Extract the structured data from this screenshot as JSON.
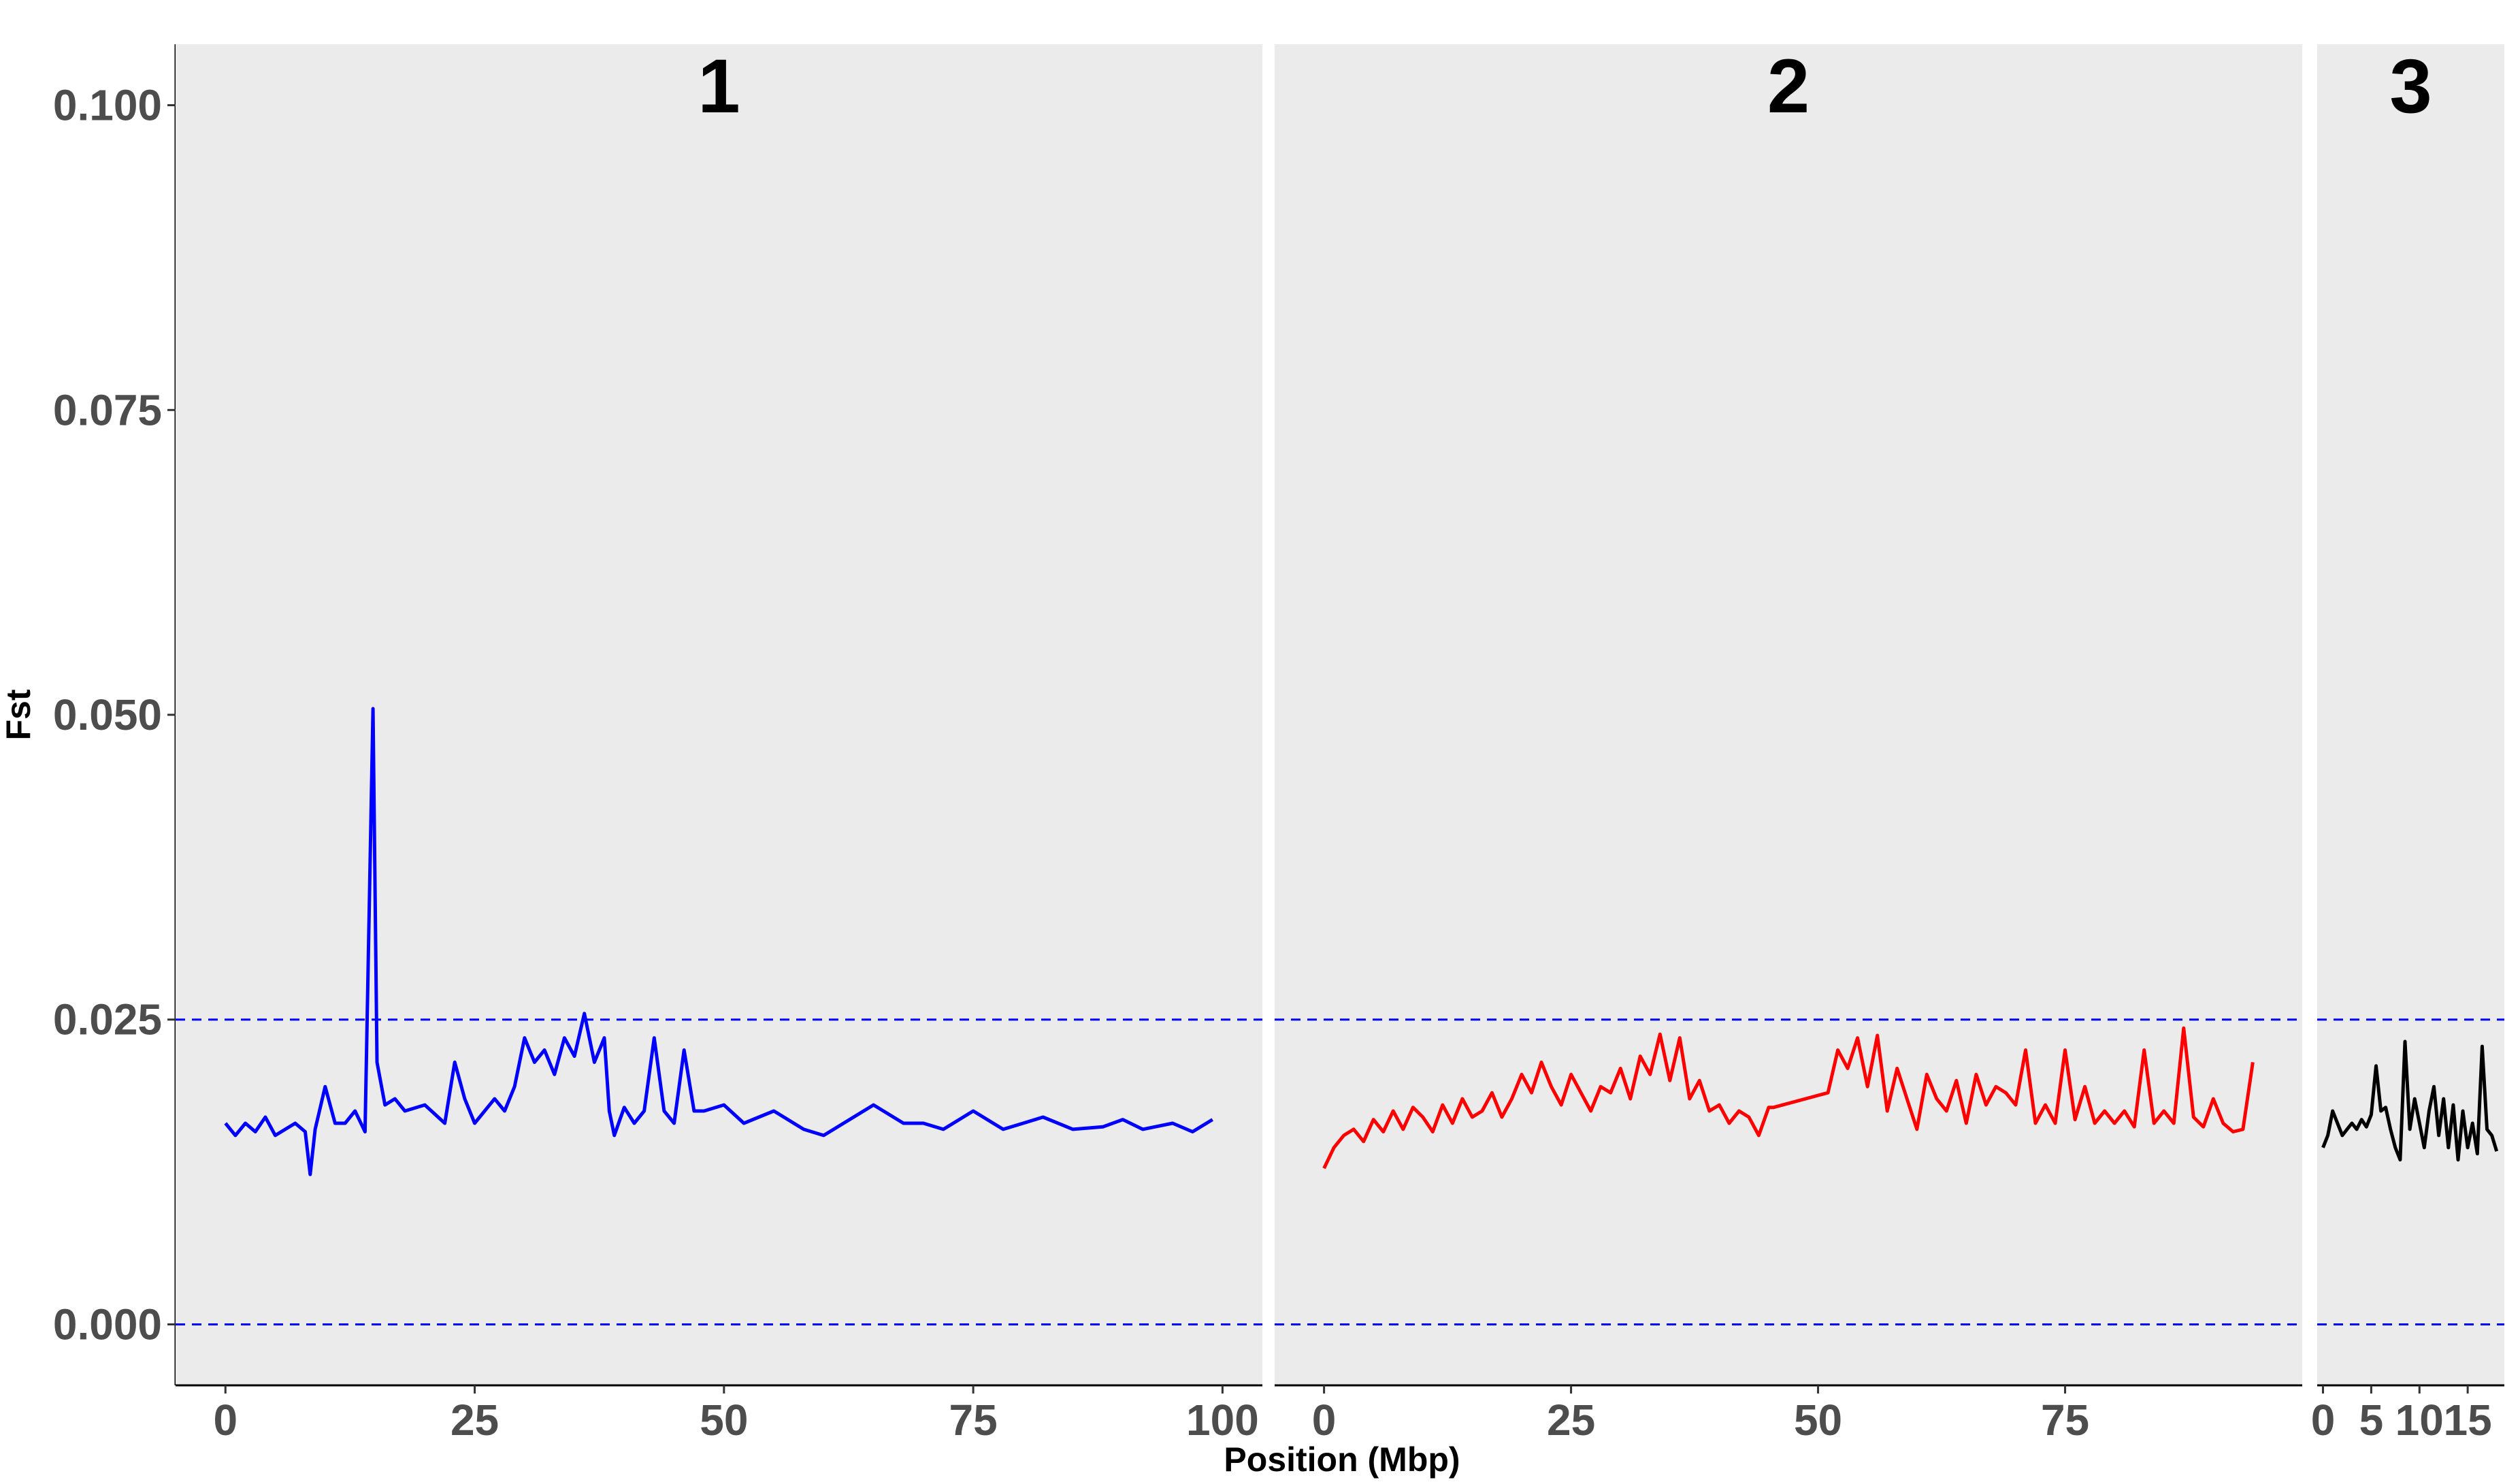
{
  "chart_data": {
    "type": "line",
    "xlabel": "Position (Mbp)",
    "ylabel": "Fst",
    "ylim": [
      -0.005,
      0.105
    ],
    "yticks": [
      0.0,
      0.025,
      0.05,
      0.075,
      0.1
    ],
    "ytick_labels": [
      "0.000",
      "0.025",
      "0.050",
      "0.075",
      "0.100"
    ],
    "reference_lines": [
      {
        "y": 0.025,
        "style": "dashed",
        "color": "#0000ff"
      },
      {
        "y": 0.0,
        "style": "dashed",
        "color": "#0000ff"
      }
    ],
    "panel_background": "#ebebeb",
    "grid": false,
    "facets": [
      {
        "label": "1",
        "color": "#0000ff",
        "xlim": [
          -5,
          104
        ],
        "xticks": [
          0,
          25,
          50,
          75,
          100
        ],
        "xtick_labels": [
          "0",
          "25",
          "50",
          "75",
          "100"
        ],
        "x": [
          0,
          1,
          2,
          3,
          4,
          5,
          6,
          7,
          8,
          8.5,
          9,
          10,
          11,
          12,
          13,
          14,
          14.8,
          15.2,
          16,
          17,
          18,
          20,
          22,
          23,
          24,
          25,
          27,
          28,
          29,
          30,
          31,
          32,
          33,
          34,
          35,
          36,
          37,
          38,
          38.5,
          39,
          40,
          41,
          42,
          43,
          44,
          45,
          46,
          47,
          48,
          50,
          52,
          55,
          58,
          60,
          62,
          65,
          68,
          70,
          72,
          75,
          78,
          80,
          82,
          85,
          88,
          90,
          92,
          95,
          97,
          99
        ],
        "y": [
          0.0165,
          0.0155,
          0.0165,
          0.0158,
          0.017,
          0.0155,
          0.016,
          0.0165,
          0.0158,
          0.0123,
          0.016,
          0.0195,
          0.0165,
          0.0165,
          0.0175,
          0.0158,
          0.0505,
          0.0215,
          0.018,
          0.0185,
          0.0175,
          0.018,
          0.0165,
          0.0215,
          0.0185,
          0.0165,
          0.0185,
          0.0175,
          0.0195,
          0.0235,
          0.0215,
          0.0225,
          0.0205,
          0.0235,
          0.022,
          0.0255,
          0.0215,
          0.0235,
          0.0175,
          0.0155,
          0.0178,
          0.0165,
          0.0175,
          0.0235,
          0.0175,
          0.0165,
          0.0225,
          0.0175,
          0.0175,
          0.018,
          0.0165,
          0.0175,
          0.016,
          0.0155,
          0.0165,
          0.018,
          0.0165,
          0.0165,
          0.016,
          0.0175,
          0.016,
          0.0165,
          0.017,
          0.016,
          0.0162,
          0.0168,
          0.016,
          0.0165,
          0.0158,
          0.0168
        ]
      },
      {
        "label": "2",
        "color": "#ff0000",
        "xlim": [
          -5,
          99
        ],
        "xticks": [
          0,
          25,
          50,
          75
        ],
        "xtick_labels": [
          "0",
          "25",
          "50",
          "75"
        ],
        "x": [
          0,
          1,
          2,
          3,
          4,
          5,
          6,
          7,
          8,
          9,
          10,
          11,
          12,
          13,
          14,
          15,
          16,
          17,
          18,
          19,
          20,
          21,
          22,
          23,
          24,
          25,
          26,
          27,
          28,
          29,
          30,
          31,
          32,
          33,
          34,
          35,
          36,
          37,
          38,
          39,
          40,
          41,
          42,
          43,
          44,
          45,
          45.5,
          51,
          52,
          53,
          54,
          55,
          56,
          57,
          58,
          59,
          60,
          61,
          62,
          63,
          64,
          65,
          66,
          67,
          68,
          69,
          70,
          71,
          72,
          73,
          74,
          75,
          76,
          77,
          78,
          79,
          80,
          81,
          82,
          83,
          84,
          85,
          86,
          87,
          88,
          89,
          90,
          91,
          92,
          93,
          94
        ],
        "y": [
          0.0128,
          0.0145,
          0.0155,
          0.016,
          0.015,
          0.0168,
          0.0158,
          0.0175,
          0.016,
          0.0178,
          0.017,
          0.0158,
          0.018,
          0.0165,
          0.0185,
          0.017,
          0.0175,
          0.019,
          0.017,
          0.0185,
          0.0205,
          0.019,
          0.0215,
          0.0195,
          0.018,
          0.0205,
          0.019,
          0.0175,
          0.0195,
          0.019,
          0.021,
          0.0185,
          0.022,
          0.0205,
          0.0238,
          0.02,
          0.0235,
          0.0185,
          0.02,
          0.0175,
          0.018,
          0.0165,
          0.0175,
          0.017,
          0.0155,
          0.0178,
          0.0178,
          0.019,
          0.0225,
          0.021,
          0.0235,
          0.0195,
          0.0237,
          0.0175,
          0.021,
          0.0185,
          0.016,
          0.0205,
          0.0185,
          0.0175,
          0.02,
          0.0165,
          0.0205,
          0.018,
          0.0195,
          0.019,
          0.018,
          0.0225,
          0.0165,
          0.018,
          0.0165,
          0.0225,
          0.0168,
          0.0195,
          0.0165,
          0.0175,
          0.0165,
          0.0175,
          0.0162,
          0.0225,
          0.0165,
          0.0175,
          0.0165,
          0.0243,
          0.017,
          0.0162,
          0.0185,
          0.0165,
          0.0158,
          0.016,
          0.0215
        ]
      },
      {
        "label": "3",
        "color": "#000000",
        "xlim": [
          -0.6,
          18.8
        ],
        "xticks": [
          0,
          5,
          10,
          15
        ],
        "xtick_labels": [
          "0",
          "5",
          "10",
          "15"
        ],
        "x": [
          0,
          0.5,
          1,
          1.5,
          2,
          2.5,
          3,
          3.5,
          4,
          4.5,
          5,
          5.5,
          6,
          6.5,
          7,
          7.5,
          8,
          8.5,
          9,
          9.5,
          10,
          10.5,
          11,
          11.5,
          12,
          12.5,
          13,
          13.5,
          14,
          14.5,
          15,
          15.5,
          16,
          16.5,
          17,
          17.5,
          18
        ],
        "y": [
          0.0145,
          0.0155,
          0.0175,
          0.0165,
          0.0155,
          0.016,
          0.0165,
          0.016,
          0.0168,
          0.0162,
          0.0172,
          0.0212,
          0.0175,
          0.0178,
          0.016,
          0.0145,
          0.0135,
          0.0232,
          0.016,
          0.0185,
          0.0165,
          0.0145,
          0.0175,
          0.0195,
          0.0155,
          0.0185,
          0.0145,
          0.018,
          0.0135,
          0.0175,
          0.0145,
          0.0165,
          0.014,
          0.0228,
          0.016,
          0.0155,
          0.0142
        ]
      }
    ]
  }
}
